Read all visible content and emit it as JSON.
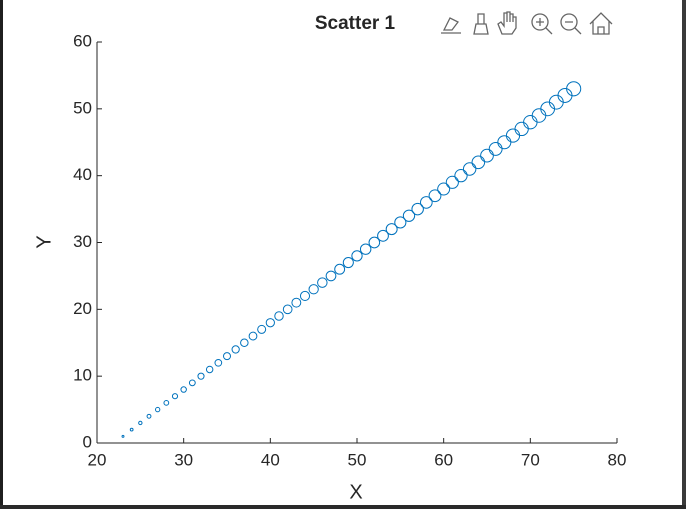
{
  "chart_data": {
    "type": "scatter",
    "title": "Scatter 1",
    "x_label": "X",
    "y_label": "Y",
    "x": [
      23,
      24,
      25,
      26,
      27,
      28,
      29,
      30,
      31,
      32,
      33,
      34,
      35,
      36,
      37,
      38,
      39,
      40,
      41,
      42,
      43,
      44,
      45,
      46,
      47,
      48,
      49,
      50,
      51,
      52,
      53,
      54,
      55,
      56,
      57,
      58,
      59,
      60,
      61,
      62,
      63,
      64,
      65,
      66,
      67,
      68,
      69,
      70,
      71,
      72,
      73,
      74,
      75
    ],
    "series": [
      {
        "color": "#0072bd",
        "values": [
          1,
          2,
          3,
          4,
          5,
          6,
          7,
          8,
          9,
          10,
          11,
          12,
          13,
          14,
          15,
          16,
          17,
          18,
          19,
          20,
          21,
          22,
          23,
          24,
          25,
          26,
          27,
          28,
          29,
          30,
          31,
          32,
          33,
          34,
          35,
          36,
          37,
          38,
          39,
          40,
          41,
          42,
          43,
          44,
          45,
          46,
          47,
          48,
          49,
          50,
          51,
          52,
          53
        ],
        "sizes": [
          1,
          2,
          3,
          4,
          5,
          6,
          7,
          8,
          9,
          10,
          11,
          12,
          13,
          14,
          15,
          16,
          17,
          18,
          19,
          20,
          21,
          22,
          23,
          24,
          25,
          26,
          27,
          28,
          29,
          30,
          31,
          32,
          33,
          34,
          35,
          36,
          37,
          38,
          39,
          40,
          41,
          42,
          43,
          44,
          45,
          46,
          47,
          48,
          49,
          50,
          51,
          52,
          53
        ]
      }
    ],
    "xlim": [
      20,
      80
    ],
    "ylim": [
      0,
      60
    ],
    "xticks": [
      20,
      30,
      40,
      50,
      60,
      70,
      80
    ],
    "yticks": [
      0,
      10,
      20,
      30,
      40,
      50,
      60
    ]
  }
}
